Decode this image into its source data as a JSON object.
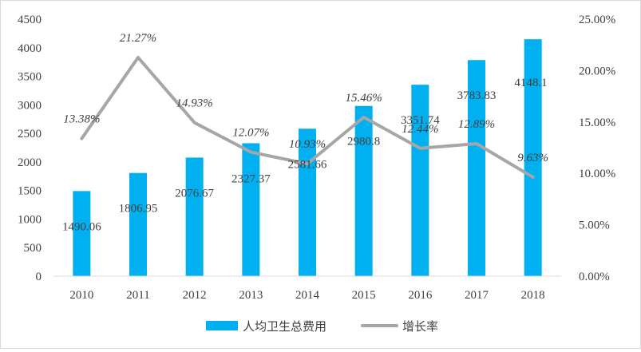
{
  "chart_data": {
    "type": "bar",
    "categories": [
      "2010",
      "2011",
      "2012",
      "2013",
      "2014",
      "2015",
      "2016",
      "2017",
      "2018"
    ],
    "series": [
      {
        "name": "人均卫生总费用",
        "type": "bar",
        "axis": "left",
        "color": "#00b0f0",
        "values": [
          1490.06,
          1806.95,
          2076.67,
          2327.37,
          2581.66,
          2980.8,
          3351.74,
          3783.83,
          4148.1
        ],
        "labels": [
          "1490.06",
          "1806.95",
          "2076.67",
          "2327.37",
          "2581.66",
          "2980.8",
          "3351.74",
          "3783.83",
          "4148.1"
        ]
      },
      {
        "name": "增长率",
        "type": "line",
        "axis": "right",
        "color": "#a6a6a6",
        "values": [
          13.38,
          21.27,
          14.93,
          12.07,
          10.93,
          15.46,
          12.44,
          12.89,
          9.63
        ],
        "labels": [
          "13.38%",
          "21.27%",
          "14.93%",
          "12.07%",
          "10.93%",
          "15.46%",
          "12.44%",
          "12.89%",
          "9.63%"
        ]
      }
    ],
    "left_axis": {
      "ylim": [
        0,
        4500
      ],
      "ticks": [
        "0",
        "500",
        "1000",
        "1500",
        "2000",
        "2500",
        "3000",
        "3500",
        "4000",
        "4500"
      ]
    },
    "right_axis": {
      "ylim": [
        0,
        25
      ],
      "ticks": [
        "0.00%",
        "5.00%",
        "10.00%",
        "15.00%",
        "20.00%",
        "25.00%"
      ]
    },
    "grid": false,
    "legend": "bottom"
  }
}
